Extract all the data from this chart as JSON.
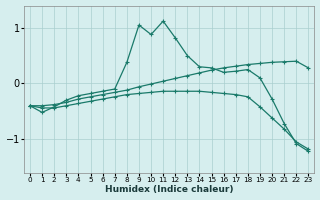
{
  "xlabel": "Humidex (Indice chaleur)",
  "ylabel": "",
  "background_color": "#d6eeee",
  "grid_color": "#aacfcf",
  "line_color": "#1a7a6a",
  "xlim": [
    -0.5,
    23.5
  ],
  "ylim": [
    -1.6,
    1.4
  ],
  "yticks": [
    -1,
    0,
    1
  ],
  "xticks": [
    0,
    1,
    2,
    3,
    4,
    5,
    6,
    7,
    8,
    9,
    10,
    11,
    12,
    13,
    14,
    15,
    16,
    17,
    18,
    19,
    20,
    21,
    22,
    23
  ],
  "series1_x": [
    0,
    1,
    2,
    3,
    4,
    5,
    6,
    7,
    8,
    9,
    10,
    11,
    12,
    13,
    14,
    15,
    16,
    17,
    18,
    19,
    20,
    21,
    22,
    23
  ],
  "series1_y": [
    -0.4,
    -0.52,
    -0.42,
    -0.3,
    -0.22,
    -0.18,
    -0.14,
    -0.1,
    0.38,
    1.05,
    0.88,
    1.12,
    0.82,
    0.5,
    0.3,
    0.28,
    0.2,
    0.22,
    0.25,
    0.1,
    -0.28,
    -0.72,
    -1.08,
    -1.22
  ],
  "series2_x": [
    0,
    1,
    2,
    3,
    4,
    5,
    6,
    7,
    8,
    9,
    10,
    11,
    12,
    13,
    14,
    15,
    16,
    17,
    18,
    19,
    20,
    21,
    22,
    23
  ],
  "series2_y": [
    -0.4,
    -0.4,
    -0.38,
    -0.34,
    -0.28,
    -0.24,
    -0.2,
    -0.16,
    -0.12,
    -0.06,
    -0.01,
    0.04,
    0.09,
    0.14,
    0.19,
    0.24,
    0.28,
    0.31,
    0.34,
    0.36,
    0.38,
    0.39,
    0.4,
    0.28
  ],
  "series3_x": [
    0,
    1,
    2,
    3,
    4,
    5,
    6,
    7,
    8,
    9,
    10,
    11,
    12,
    13,
    14,
    15,
    16,
    17,
    18,
    19,
    20,
    21,
    22,
    23
  ],
  "series3_y": [
    -0.4,
    -0.44,
    -0.44,
    -0.4,
    -0.36,
    -0.32,
    -0.28,
    -0.24,
    -0.2,
    -0.18,
    -0.16,
    -0.14,
    -0.14,
    -0.14,
    -0.14,
    -0.16,
    -0.18,
    -0.2,
    -0.24,
    -0.42,
    -0.62,
    -0.82,
    -1.05,
    -1.18
  ]
}
